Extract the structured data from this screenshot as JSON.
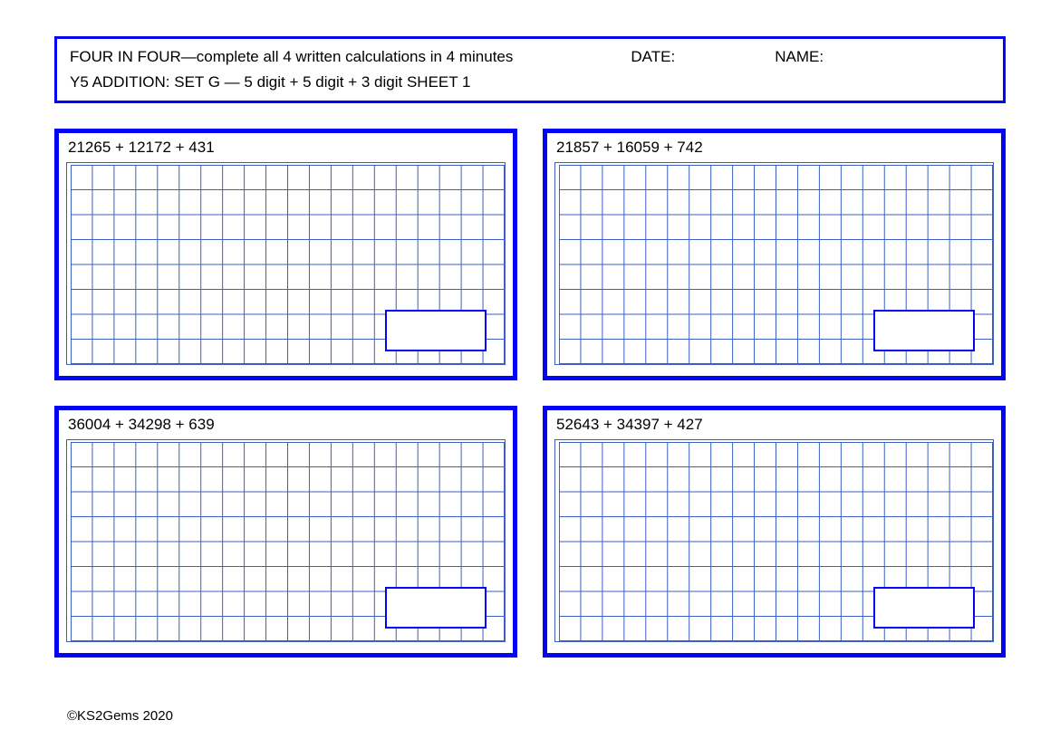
{
  "header": {
    "title": "FOUR IN FOUR—complete all 4 written calculations in 4 minutes",
    "date_label": "DATE:",
    "name_label": "NAME:",
    "subtitle": "Y5 ADDITION: SET G — 5 digit + 5 digit + 3 digit SHEET 1"
  },
  "problems": [
    {
      "expression": "21265 + 12172 + 431"
    },
    {
      "expression": "21857 + 16059 + 742"
    },
    {
      "expression": "36004 + 34298 + 639"
    },
    {
      "expression": "52643 + 34397 + 427"
    }
  ],
  "footer": "©KS2Gems 2020",
  "styling": {
    "border_color": "#0404f4",
    "grid_line_color": "#3b5fc4",
    "text_color": "#000000",
    "background_color": "#ffffff",
    "grid_cols": 20,
    "grid_rows": 8,
    "outer_border_width": 5,
    "header_border_width": 3,
    "answer_box_border_width": 2,
    "font_family": "Verdana, Geneva, sans-serif",
    "header_font_size": 17,
    "problem_font_size": 17,
    "footer_font_size": 15
  }
}
